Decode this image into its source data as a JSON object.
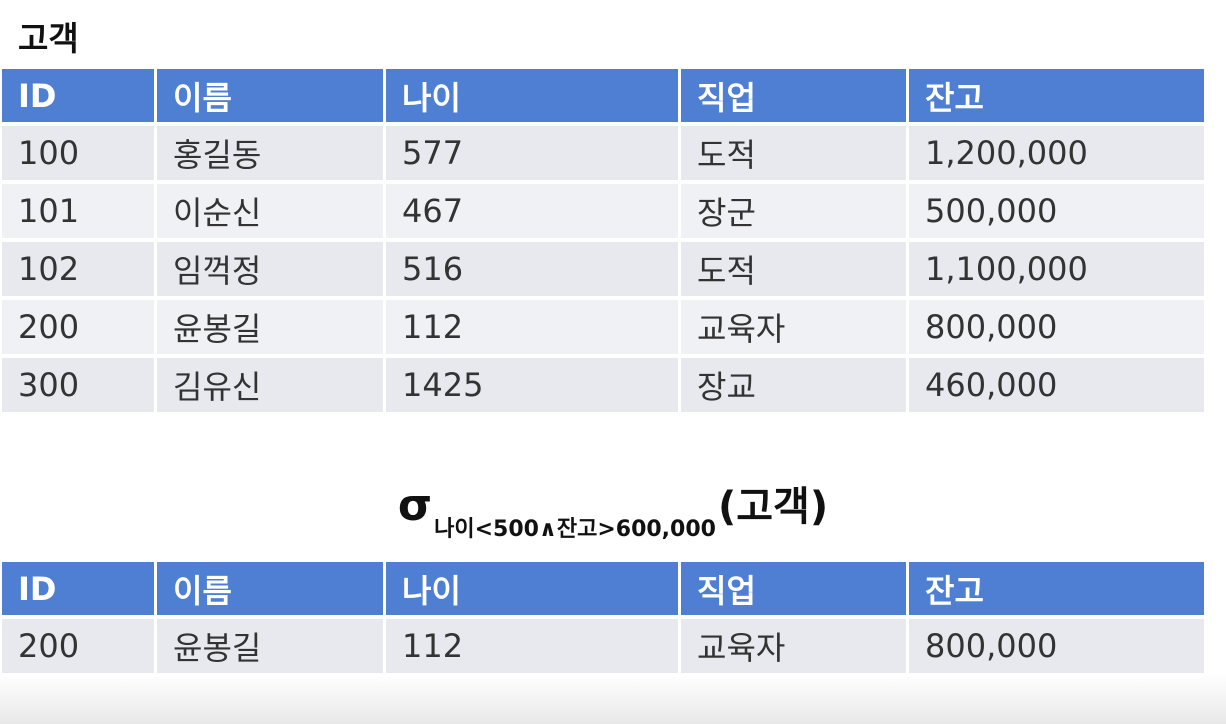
{
  "table_title": "고객",
  "columns": [
    "ID",
    "이름",
    "나이",
    "직업",
    "잔고"
  ],
  "rows": [
    [
      "100",
      "홍길동",
      "577",
      "도적",
      "1,200,000"
    ],
    [
      "101",
      "이순신",
      "467",
      "장군",
      "500,000"
    ],
    [
      "102",
      "임꺽정",
      "516",
      "도적",
      "1,100,000"
    ],
    [
      "200",
      "윤봉길",
      "112",
      "교육자",
      "800,000"
    ],
    [
      "300",
      "김유신",
      "1425",
      "장교",
      "460,000"
    ]
  ],
  "formula": {
    "operator": "σ",
    "condition": "나이<500∧잔고>600,000",
    "relation": "(고객)"
  },
  "result_rows": [
    [
      "200",
      "윤봉길",
      "112",
      "교육자",
      "800,000"
    ]
  ]
}
